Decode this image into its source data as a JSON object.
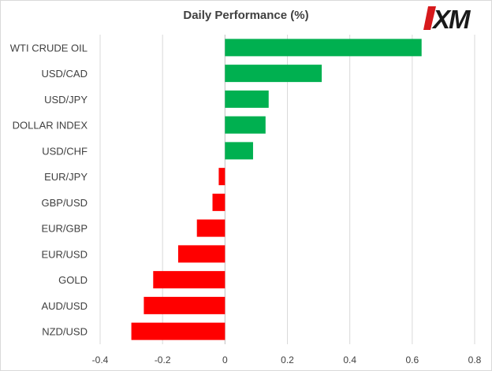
{
  "logo": {
    "text": "XM",
    "colors": {
      "mark": "#d7191c",
      "text": "#1a1a1a"
    }
  },
  "colors": {
    "positive": "#00b050",
    "negative": "#ff0000",
    "grid": "#d9d9d9",
    "axis": "#bfbfbf"
  },
  "chart_data": {
    "type": "bar",
    "orientation": "horizontal",
    "title": "Daily Performance  (%)",
    "categories": [
      "WTI CRUDE OIL",
      "USD/CAD",
      "USD/JPY",
      "DOLLAR INDEX",
      "USD/CHF",
      "EUR/JPY",
      "GBP/USD",
      "EUR/GBP",
      "EUR/USD",
      "GOLD",
      "AUD/USD",
      "NZD/USD"
    ],
    "values": [
      0.63,
      0.31,
      0.14,
      0.13,
      0.09,
      -0.02,
      -0.04,
      -0.09,
      -0.15,
      -0.23,
      -0.26,
      -0.3
    ],
    "xlim": [
      -0.4,
      0.8
    ],
    "xticks": [
      -0.4,
      -0.2,
      0,
      0.2,
      0.4,
      0.6,
      0.8
    ],
    "xtick_labels": [
      "-0.4",
      "-0.2",
      "0",
      "0.2",
      "0.4",
      "0.6",
      "0.8"
    ],
    "grid": true,
    "legend": "none"
  }
}
